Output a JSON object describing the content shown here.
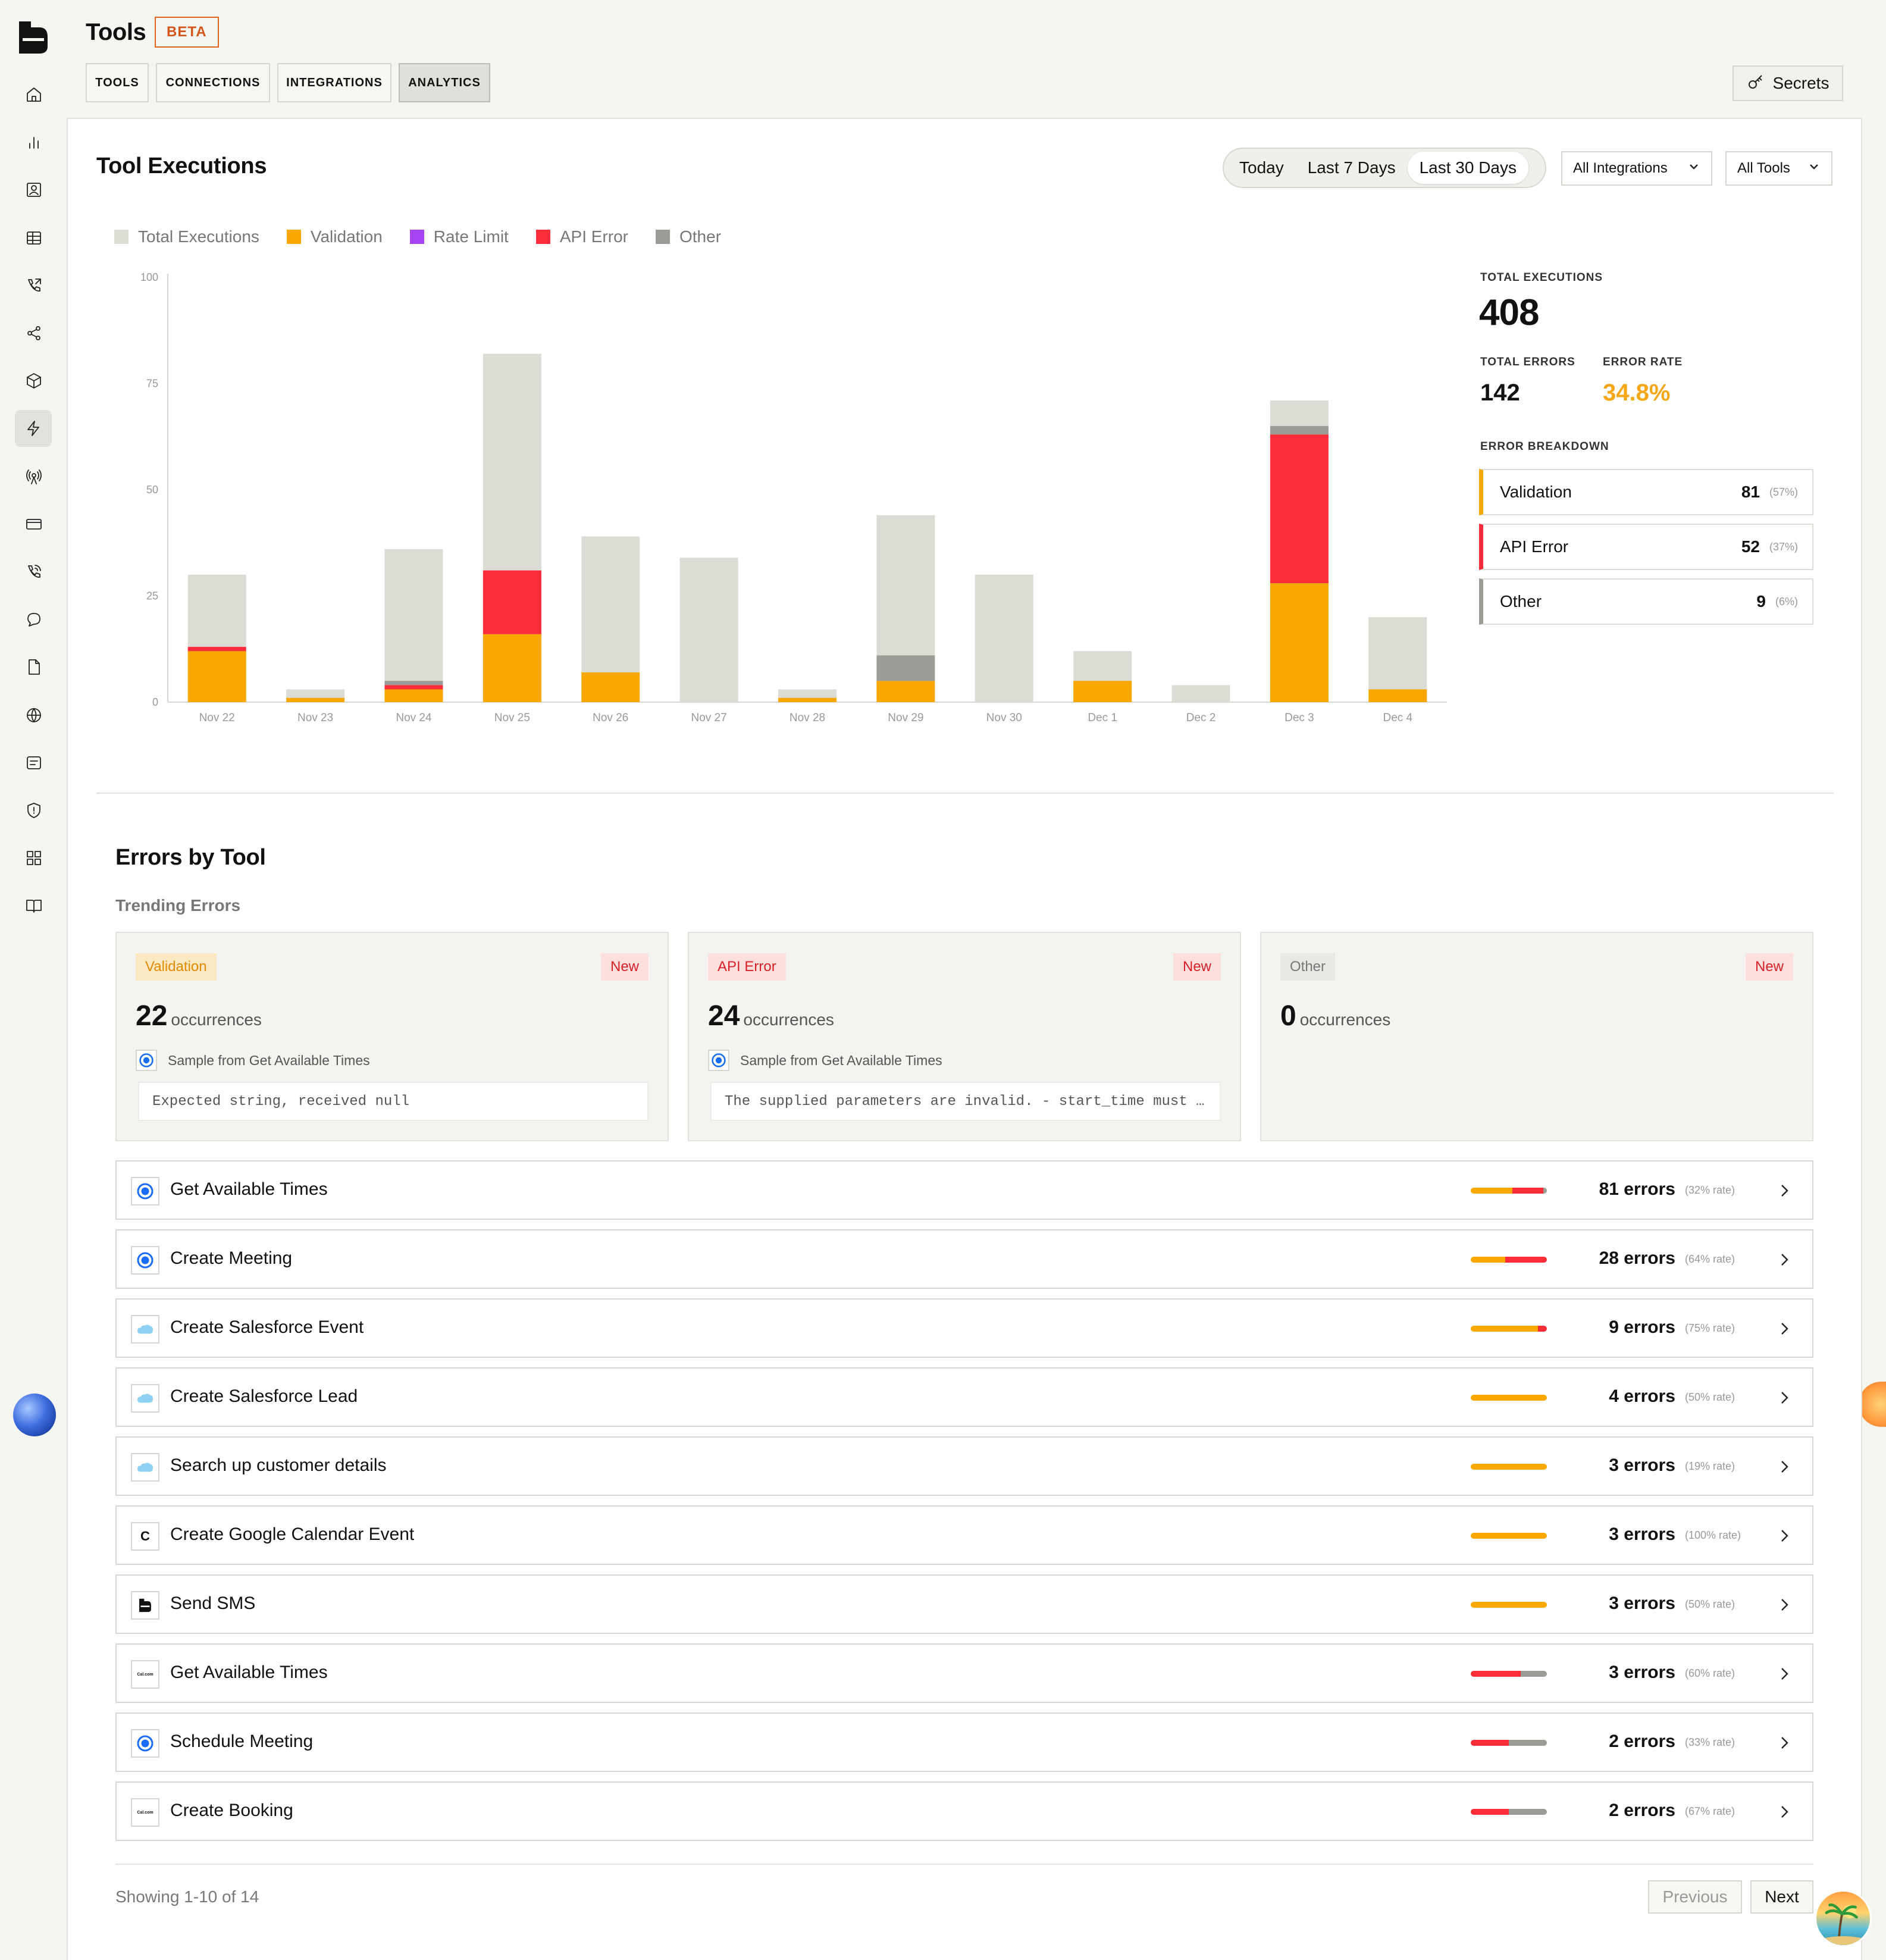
{
  "header": {
    "title": "Tools",
    "badge": "BETA",
    "tabs": [
      "TOOLS",
      "CONNECTIONS",
      "INTEGRATIONS",
      "ANALYTICS"
    ],
    "active_tab": "ANALYTICS",
    "secrets_label": "Secrets"
  },
  "sidebar": {
    "icons": [
      "home-icon",
      "analytics-icon",
      "contacts-icon",
      "table-icon",
      "phone-outgoing-icon",
      "share-icon",
      "package-icon",
      "bolt-icon",
      "broadcast-icon",
      "credit-card-icon",
      "phone-call-icon",
      "chat-icon",
      "file-icon",
      "globe-icon",
      "message-icon",
      "shield-icon",
      "apps-icon",
      "book-icon"
    ],
    "active": "bolt-icon"
  },
  "executions": {
    "title": "Tool Executions",
    "ranges": [
      "Today",
      "Last 7 Days",
      "Last 30 Days"
    ],
    "active_range": "Last 30 Days",
    "integrations_filter": "All Integrations",
    "tools_filter": "All Tools"
  },
  "chart_data": {
    "type": "bar",
    "stacked": true,
    "categories": [
      "Nov 22",
      "Nov 23",
      "Nov 24",
      "Nov 25",
      "Nov 26",
      "Nov 27",
      "Nov 28",
      "Nov 29",
      "Nov 30",
      "Dec 1",
      "Dec 2",
      "Dec 3",
      "Dec 4"
    ],
    "ylim": [
      0,
      100
    ],
    "yticks": [
      0,
      25,
      50,
      75,
      100
    ],
    "legend_position": "top-left",
    "grid": false,
    "series": [
      {
        "name": "Validation",
        "color": "#f8a800",
        "values": [
          12,
          1,
          3,
          16,
          7,
          0,
          1,
          5,
          0,
          5,
          0,
          28,
          3
        ]
      },
      {
        "name": "Rate Limit",
        "color": "#a544f0",
        "values": [
          0,
          0,
          0,
          0,
          0,
          0,
          0,
          0,
          0,
          0,
          0,
          0,
          0
        ]
      },
      {
        "name": "API Error",
        "color": "#fb2c3a",
        "values": [
          1,
          0,
          1,
          15,
          0,
          0,
          0,
          0,
          0,
          0,
          0,
          35,
          0
        ]
      },
      {
        "name": "Other",
        "color": "#9c9c97",
        "values": [
          0,
          0,
          1,
          0,
          0,
          0,
          0,
          6,
          0,
          0,
          0,
          2,
          0
        ]
      }
    ],
    "totals": {
      "name": "Total Executions",
      "color": "#dcdcd5",
      "values": [
        30,
        3,
        36,
        82,
        39,
        34,
        3,
        44,
        30,
        12,
        4,
        71,
        20
      ]
    }
  },
  "stats": {
    "total_executions_label": "TOTAL EXECUTIONS",
    "total_executions": "408",
    "total_errors_label": "TOTAL ERRORS",
    "total_errors": "142",
    "error_rate_label": "ERROR RATE",
    "error_rate": "34.8%",
    "breakdown_label": "ERROR BREAKDOWN",
    "breakdown": [
      {
        "label": "Validation",
        "count": "81",
        "pct": "(57%)",
        "color": "#f8a800"
      },
      {
        "label": "API Error",
        "count": "52",
        "pct": "(37%)",
        "color": "#fb2c3a"
      },
      {
        "label": "Other",
        "count": "9",
        "pct": "(6%)",
        "color": "#9c9c97"
      }
    ]
  },
  "errors_by_tool": {
    "title": "Errors by Tool",
    "trending_label": "Trending Errors",
    "trending": [
      {
        "type": "Validation",
        "badge": "New",
        "count": "22",
        "unit": "occurrences",
        "sample": "Sample from Get Available Times",
        "message": "Expected string, received null"
      },
      {
        "type": "API Error",
        "badge": "New",
        "count": "24",
        "unit": "occurrences",
        "sample": "Sample from Get Available Times",
        "message": "The supplied parameters are invalid. - start_time must …"
      },
      {
        "type": "Other",
        "badge": "New",
        "count": "0",
        "unit": "occurrences"
      }
    ],
    "rows": [
      {
        "name": "Get Available Times",
        "icon": "calendly-icon",
        "errors": "81 errors",
        "rate": "(32% rate)",
        "bar": [
          0.55,
          0.4,
          0.05
        ]
      },
      {
        "name": "Create Meeting",
        "icon": "calendly-icon",
        "errors": "28 errors",
        "rate": "(64% rate)",
        "bar": [
          0.45,
          0.55,
          0
        ]
      },
      {
        "name": "Create Salesforce Event",
        "icon": "salesforce-icon",
        "errors": "9 errors",
        "rate": "(75% rate)",
        "bar": [
          0.88,
          0.12,
          0
        ]
      },
      {
        "name": "Create Salesforce Lead",
        "icon": "salesforce-icon",
        "errors": "4 errors",
        "rate": "(50% rate)",
        "bar": [
          1,
          0,
          0
        ]
      },
      {
        "name": "Search up customer details",
        "icon": "salesforce-icon",
        "errors": "3 errors",
        "rate": "(19% rate)",
        "bar": [
          1,
          0,
          0
        ]
      },
      {
        "name": "Create Google Calendar Event",
        "icon": "custom-c-icon",
        "errors": "3 errors",
        "rate": "(100% rate)",
        "bar": [
          1,
          0,
          0
        ]
      },
      {
        "name": "Send SMS",
        "icon": "app-logo-icon",
        "errors": "3 errors",
        "rate": "(50% rate)",
        "bar": [
          1,
          0,
          0
        ]
      },
      {
        "name": "Get Available Times",
        "icon": "calcom-icon",
        "errors": "3 errors",
        "rate": "(60% rate)",
        "bar": [
          0,
          0.66,
          0.34
        ]
      },
      {
        "name": "Schedule Meeting",
        "icon": "calendly-icon",
        "errors": "2 errors",
        "rate": "(33% rate)",
        "bar": [
          0,
          0.5,
          0.5
        ]
      },
      {
        "name": "Create Booking",
        "icon": "calcom-icon",
        "errors": "2 errors",
        "rate": "(67% rate)",
        "bar": [
          0,
          0.5,
          0.5
        ]
      }
    ],
    "custom_c_letter": "C",
    "calcom_wordmark": "Cal.com",
    "pagination": {
      "showing": "Showing 1-10 of 14",
      "previous": "Previous",
      "next": "Next"
    }
  }
}
